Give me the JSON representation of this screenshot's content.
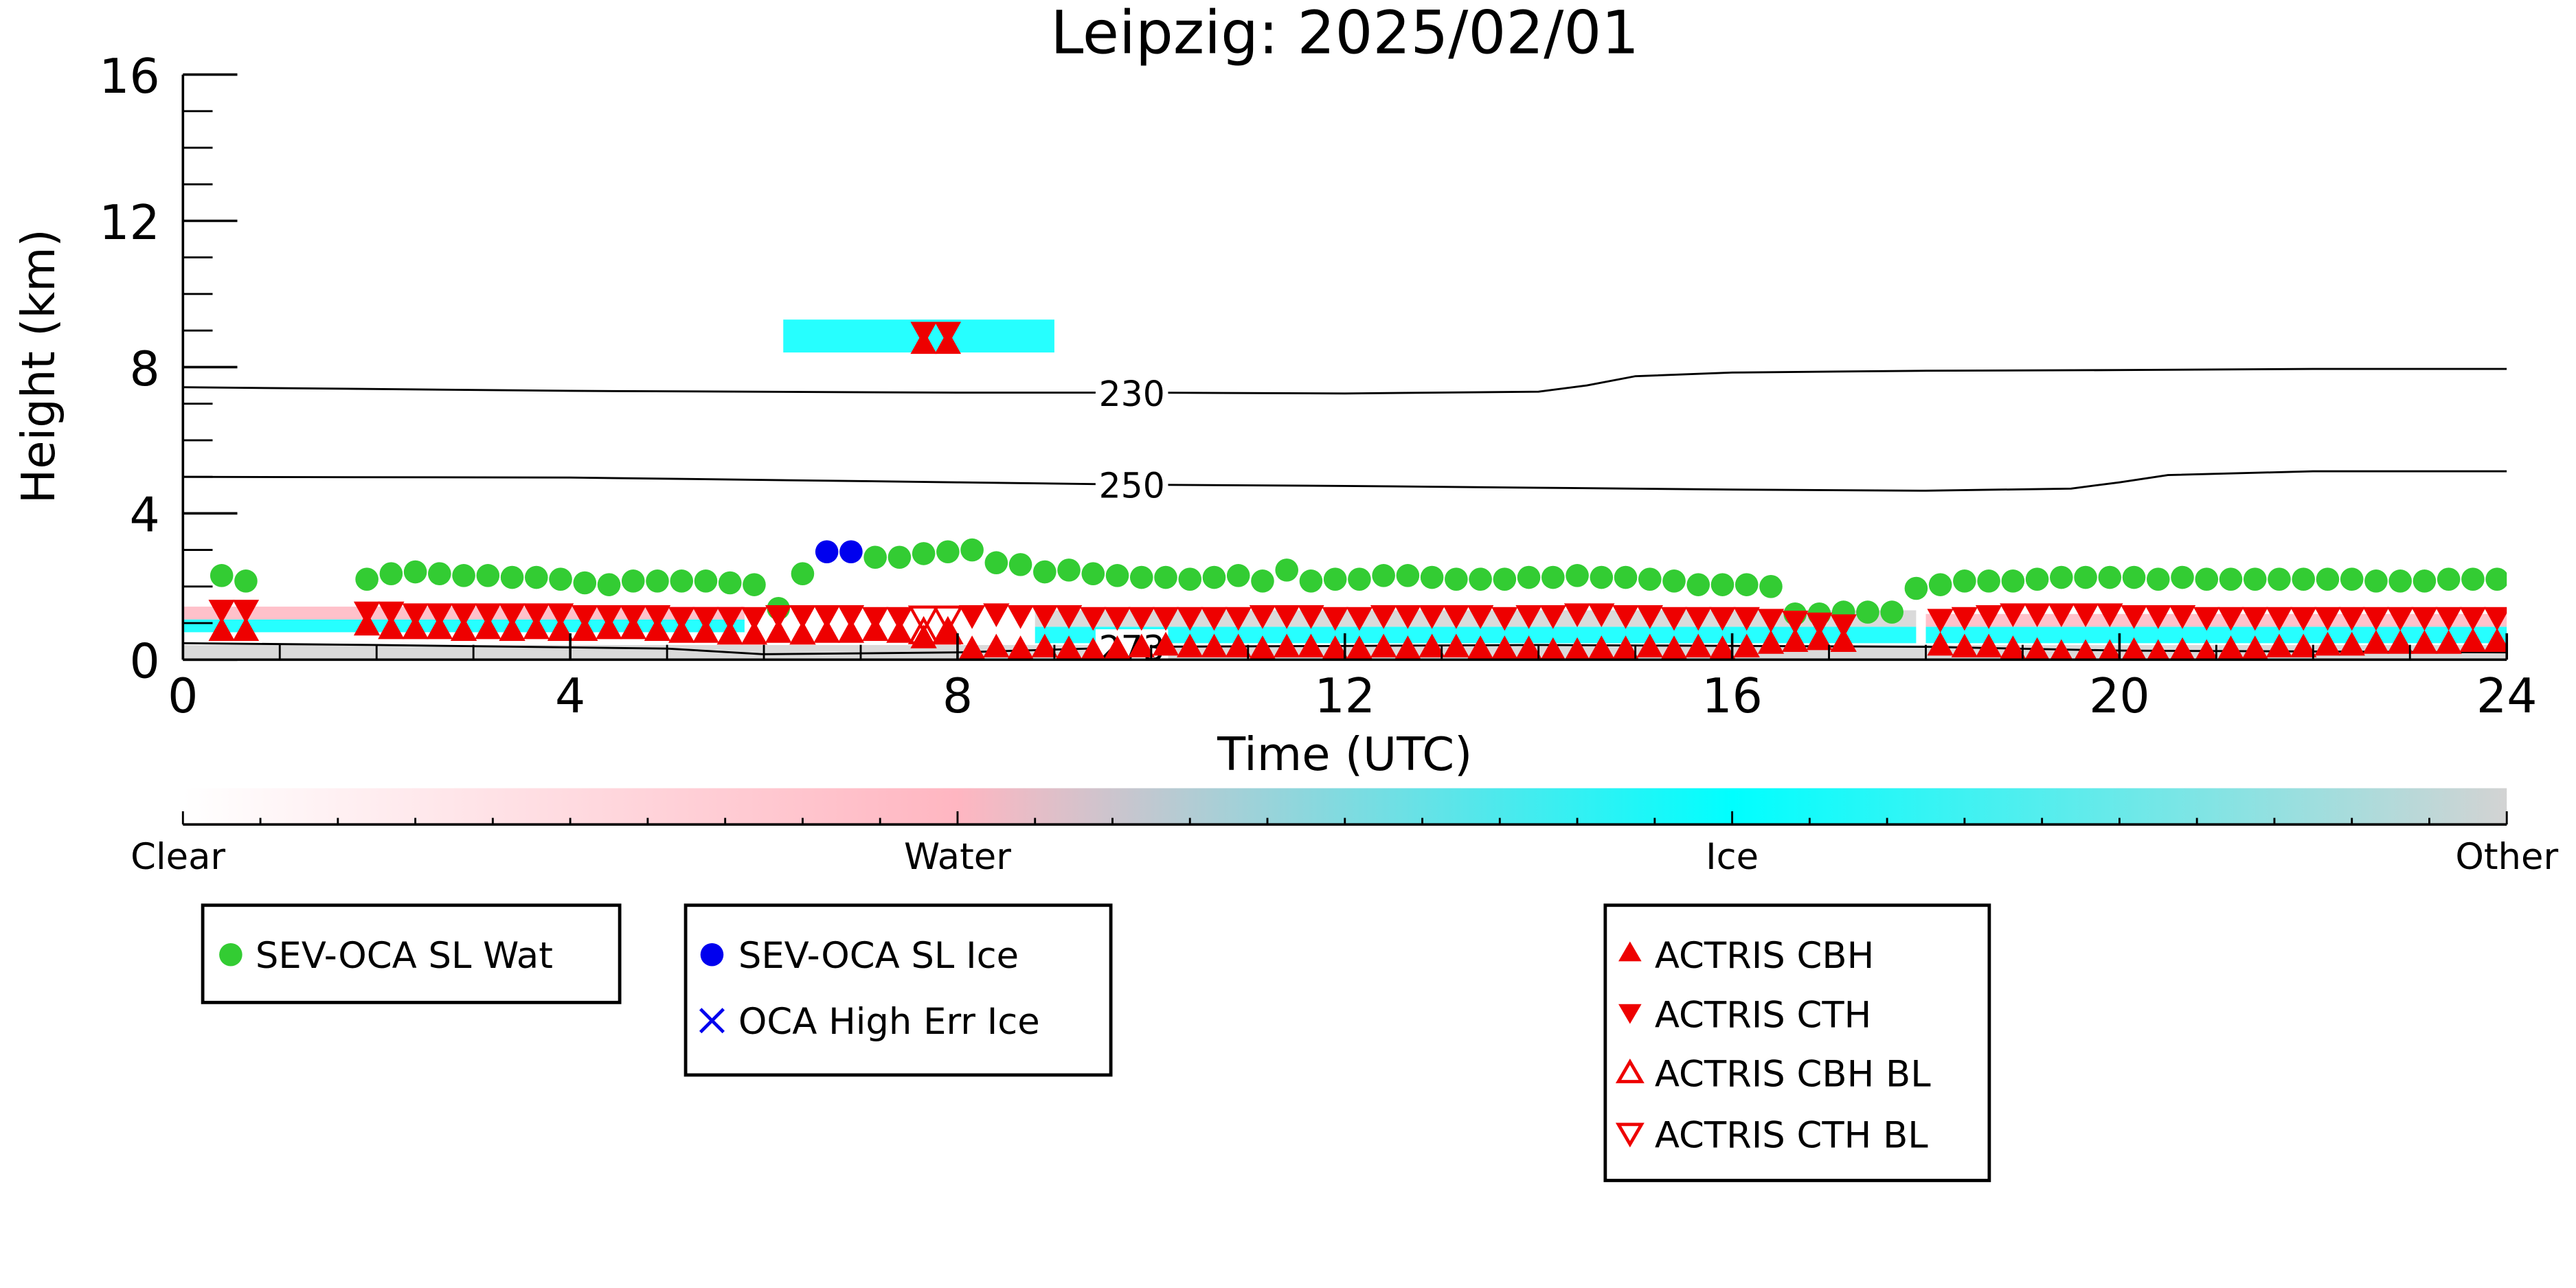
{
  "chart_data": {
    "type": "scatter",
    "title": "Leipzig: 2025/02/01",
    "xlabel": "Time (UTC)",
    "ylabel": "Height (km)",
    "xlim": [
      0,
      24
    ],
    "ylim": [
      0,
      16
    ],
    "xticks": [
      "0",
      "4",
      "8",
      "12",
      "16",
      "20",
      "24"
    ],
    "yticks": [
      "0",
      "4",
      "8",
      "12",
      "16"
    ],
    "grid": false,
    "colorbar": {
      "labels": [
        "Clear",
        "Water",
        "Ice",
        "Other"
      ],
      "colors": [
        "#ffffff",
        "#ffb6c1",
        "#00ffff",
        "#d3d3d3"
      ]
    },
    "contours": [
      {
        "label": "230",
        "x": [
          0,
          4,
          8,
          10,
          12,
          14,
          14.5,
          15,
          16,
          18,
          20,
          22,
          24
        ],
        "y": [
          7.45,
          7.35,
          7.3,
          7.3,
          7.28,
          7.33,
          7.5,
          7.75,
          7.85,
          7.9,
          7.92,
          7.95,
          7.95
        ]
      },
      {
        "label": "250",
        "x": [
          0,
          4,
          8,
          10,
          12,
          14,
          16,
          18,
          19.5,
          20,
          20.5,
          22,
          24
        ],
        "y": [
          5.0,
          4.98,
          4.85,
          4.78,
          4.75,
          4.7,
          4.65,
          4.62,
          4.68,
          4.85,
          5.05,
          5.15,
          5.15
        ]
      },
      {
        "label": "273",
        "x": [
          0,
          2,
          5,
          6,
          8,
          10,
          14,
          18,
          20,
          24
        ],
        "y": [
          0.45,
          0.4,
          0.3,
          0.15,
          0.2,
          0.35,
          0.4,
          0.35,
          0.25,
          0.2
        ]
      }
    ],
    "cloud_bands": [
      {
        "phase": "Ice",
        "x": [
          0,
          5.8
        ],
        "y": [
          0.75,
          1.1
        ]
      },
      {
        "phase": "Water",
        "x": [
          0,
          5.8
        ],
        "y": [
          1.1,
          1.45
        ]
      },
      {
        "phase": "Ice",
        "x": [
          8.8,
          17.9
        ],
        "y": [
          0.45,
          0.9
        ]
      },
      {
        "phase": "Other",
        "x": [
          8.8,
          17.9
        ],
        "y": [
          0.9,
          1.35
        ]
      },
      {
        "phase": "Ice",
        "x": [
          18,
          24
        ],
        "y": [
          0.45,
          0.9
        ]
      },
      {
        "phase": "Water",
        "x": [
          18,
          24
        ],
        "y": [
          0.9,
          1.25
        ]
      },
      {
        "phase": "Other",
        "x": [
          0,
          24
        ],
        "y": [
          0,
          0.4
        ]
      },
      {
        "phase": "Ice",
        "x": [
          6.2,
          9.0
        ],
        "y": [
          8.4,
          9.3
        ]
      }
    ],
    "series": [
      {
        "name": "SEV-OCA SL Wat",
        "marker": "circle",
        "color": "#33cc33",
        "x": [
          0.4,
          0.65,
          1.9,
          2.15,
          2.4,
          2.65,
          2.9,
          3.15,
          3.4,
          3.65,
          3.9,
          4.15,
          4.4,
          4.65,
          4.9,
          5.15,
          5.4,
          5.65,
          5.9,
          6.15,
          6.4,
          7.15,
          7.4,
          7.65,
          7.9,
          8.15,
          8.4,
          8.65,
          8.9,
          9.15,
          9.4,
          9.65,
          9.9,
          10.15,
          10.4,
          10.65,
          10.9,
          11.15,
          11.4,
          11.65,
          11.9,
          12.15,
          12.4,
          12.65,
          12.9,
          13.15,
          13.4,
          13.65,
          13.9,
          14.15,
          14.4,
          14.65,
          14.9,
          15.15,
          15.4,
          15.65,
          15.9,
          16.15,
          16.4,
          16.65,
          16.9,
          17.15,
          17.4,
          17.65,
          17.9,
          18.15,
          18.4,
          18.65,
          18.9,
          19.15,
          19.4,
          19.65,
          19.9,
          20.15,
          20.4,
          20.65,
          20.9,
          21.15,
          21.4,
          21.65,
          21.9,
          22.15,
          22.4,
          22.65,
          22.9,
          23.15,
          23.4,
          23.65,
          23.9
        ],
        "y": [
          2.3,
          2.15,
          2.2,
          2.35,
          2.4,
          2.35,
          2.3,
          2.3,
          2.25,
          2.25,
          2.2,
          2.1,
          2.05,
          2.15,
          2.15,
          2.15,
          2.15,
          2.1,
          2.05,
          1.4,
          2.35,
          2.8,
          2.8,
          2.9,
          2.95,
          3.0,
          2.65,
          2.6,
          2.4,
          2.45,
          2.35,
          2.3,
          2.25,
          2.25,
          2.2,
          2.25,
          2.3,
          2.15,
          2.45,
          2.15,
          2.2,
          2.2,
          2.3,
          2.3,
          2.25,
          2.2,
          2.2,
          2.2,
          2.25,
          2.25,
          2.3,
          2.25,
          2.25,
          2.2,
          2.15,
          2.05,
          2.05,
          2.05,
          2.0,
          1.25,
          1.25,
          1.3,
          1.3,
          1.3,
          1.95,
          2.05,
          2.15,
          2.15,
          2.15,
          2.2,
          2.25,
          2.25,
          2.25,
          2.25,
          2.2,
          2.25,
          2.2,
          2.2,
          2.2,
          2.2,
          2.2,
          2.2,
          2.2,
          2.15,
          2.15,
          2.15,
          2.2,
          2.2,
          2.2
        ]
      },
      {
        "name": "SEV-OCA SL Ice",
        "marker": "circle",
        "color": "#0000ee",
        "x": [
          6.65,
          6.9
        ],
        "y": [
          2.95,
          2.95
        ]
      },
      {
        "name": "OCA High Err Ice",
        "marker": "x",
        "color": "#0000ee",
        "x": [],
        "y": []
      },
      {
        "name": "ACTRIS CBH",
        "marker": "triangle-up",
        "color": "#ee0000",
        "x": [
          0.4,
          0.65,
          1.9,
          2.15,
          2.4,
          2.65,
          2.9,
          3.15,
          3.4,
          3.65,
          3.9,
          4.15,
          4.4,
          4.65,
          4.9,
          5.15,
          5.4,
          5.65,
          5.9,
          6.15,
          6.4,
          6.65,
          6.9,
          7.15,
          7.4,
          7.65,
          7.9,
          8.15,
          8.4,
          8.65,
          8.9,
          9.15,
          9.4,
          9.65,
          9.9,
          10.15,
          10.4,
          10.65,
          10.9,
          11.15,
          11.4,
          11.65,
          11.9,
          12.15,
          12.4,
          12.65,
          12.9,
          13.15,
          13.4,
          13.65,
          13.9,
          14.15,
          14.4,
          14.65,
          14.9,
          15.15,
          15.4,
          15.65,
          15.9,
          16.15,
          16.4,
          16.65,
          16.9,
          17.15,
          18.15,
          18.4,
          18.65,
          18.9,
          19.15,
          19.4,
          19.65,
          19.9,
          20.15,
          20.4,
          20.65,
          20.9,
          21.15,
          21.4,
          21.65,
          21.9,
          22.15,
          22.4,
          22.65,
          22.9,
          23.15,
          23.4,
          23.65,
          23.9,
          7.65,
          7.9
        ],
        "y": [
          0.8,
          0.8,
          0.95,
          0.85,
          0.85,
          0.85,
          0.8,
          0.85,
          0.8,
          0.85,
          0.8,
          0.8,
          0.85,
          0.85,
          0.8,
          0.75,
          0.75,
          0.7,
          0.7,
          0.75,
          0.7,
          0.75,
          0.75,
          0.8,
          0.75,
          0.6,
          0.7,
          0.3,
          0.35,
          0.3,
          0.35,
          0.3,
          0.25,
          0.3,
          0.35,
          0.4,
          0.35,
          0.35,
          0.35,
          0.3,
          0.35,
          0.35,
          0.3,
          0.3,
          0.35,
          0.3,
          0.35,
          0.35,
          0.3,
          0.3,
          0.3,
          0.25,
          0.25,
          0.3,
          0.3,
          0.35,
          0.3,
          0.35,
          0.3,
          0.35,
          0.45,
          0.5,
          0.55,
          0.5,
          0.4,
          0.35,
          0.35,
          0.3,
          0.25,
          0.2,
          0.2,
          0.2,
          0.25,
          0.2,
          0.25,
          0.2,
          0.3,
          0.3,
          0.35,
          0.35,
          0.4,
          0.4,
          0.45,
          0.45,
          0.45,
          0.45,
          0.5,
          0.5,
          8.65,
          8.65
        ]
      },
      {
        "name": "ACTRIS CTH",
        "marker": "triangle-down",
        "color": "#ee0000",
        "x": [
          0.4,
          0.65,
          1.9,
          2.15,
          2.4,
          2.65,
          2.9,
          3.15,
          3.4,
          3.65,
          3.9,
          4.15,
          4.4,
          4.65,
          4.9,
          5.15,
          5.4,
          5.65,
          5.9,
          6.15,
          6.4,
          6.65,
          6.9,
          7.15,
          7.4,
          8.15,
          8.4,
          8.65,
          8.9,
          9.15,
          9.4,
          9.65,
          9.9,
          10.15,
          10.4,
          10.65,
          10.9,
          11.15,
          11.4,
          11.65,
          11.9,
          12.15,
          12.4,
          12.65,
          12.9,
          13.15,
          13.4,
          13.65,
          13.9,
          14.15,
          14.4,
          14.65,
          14.9,
          15.15,
          15.4,
          15.65,
          15.9,
          16.15,
          16.4,
          16.65,
          16.9,
          17.15,
          18.15,
          18.4,
          18.65,
          18.9,
          19.15,
          19.4,
          19.65,
          19.9,
          20.15,
          20.4,
          20.65,
          20.9,
          21.15,
          21.4,
          21.65,
          21.9,
          22.15,
          22.4,
          22.65,
          22.9,
          23.15,
          23.4,
          23.65,
          23.9,
          7.65,
          7.9
        ],
        "y": [
          1.35,
          1.35,
          1.3,
          1.3,
          1.25,
          1.25,
          1.25,
          1.25,
          1.25,
          1.25,
          1.25,
          1.2,
          1.2,
          1.2,
          1.2,
          1.15,
          1.15,
          1.15,
          1.15,
          1.2,
          1.2,
          1.2,
          1.2,
          1.15,
          1.15,
          1.2,
          1.25,
          1.2,
          1.2,
          1.2,
          1.15,
          1.15,
          1.15,
          1.15,
          1.15,
          1.15,
          1.15,
          1.2,
          1.2,
          1.2,
          1.15,
          1.15,
          1.2,
          1.2,
          1.2,
          1.2,
          1.2,
          1.15,
          1.2,
          1.2,
          1.25,
          1.25,
          1.2,
          1.2,
          1.15,
          1.15,
          1.15,
          1.15,
          1.1,
          1.05,
          1.0,
          0.95,
          1.1,
          1.15,
          1.2,
          1.25,
          1.25,
          1.25,
          1.25,
          1.25,
          1.2,
          1.2,
          1.2,
          1.15,
          1.15,
          1.15,
          1.15,
          1.15,
          1.15,
          1.15,
          1.15,
          1.15,
          1.15,
          1.15,
          1.15,
          1.15,
          8.95,
          8.95
        ]
      },
      {
        "name": "ACTRIS CBH BL",
        "marker": "triangle-up-open",
        "color": "#ee0000",
        "x": [
          7.65,
          7.9
        ],
        "y": [
          0.75,
          0.75
        ]
      },
      {
        "name": "ACTRIS CTH BL",
        "marker": "triangle-down-open",
        "color": "#ee0000",
        "x": [
          7.65,
          7.9
        ],
        "y": [
          1.15,
          1.15
        ]
      }
    ]
  }
}
